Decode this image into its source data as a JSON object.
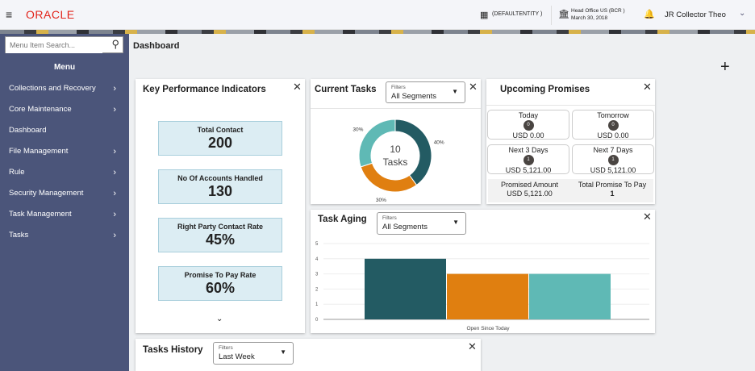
{
  "header": {
    "brand": "ORACLE",
    "entity": "(DEFAULTENTITY )",
    "branch": "Head Office US (BCR )",
    "date": "March 30, 2018",
    "user": "JR Collector Theo"
  },
  "sidebar": {
    "search_placeholder": "Menu Item Search...",
    "menu_title": "Menu",
    "items": [
      {
        "label": "Collections and Recovery",
        "has_children": true
      },
      {
        "label": "Core Maintenance",
        "has_children": true
      },
      {
        "label": "Dashboard",
        "has_children": false
      },
      {
        "label": "File Management",
        "has_children": true
      },
      {
        "label": "Rule",
        "has_children": true
      },
      {
        "label": "Security Management",
        "has_children": true
      },
      {
        "label": "Task Management",
        "has_children": true
      },
      {
        "label": "Tasks",
        "has_children": true
      }
    ]
  },
  "page_title": "Dashboard",
  "kpi": {
    "title": "Key Performance Indicators",
    "items": [
      {
        "label": "Total Contact",
        "value": "200"
      },
      {
        "label": "No Of Accounts Handled",
        "value": "130"
      },
      {
        "label": "Right Party Contact Rate",
        "value": "45%"
      },
      {
        "label": "Promise To Pay Rate",
        "value": "60%"
      }
    ]
  },
  "current_tasks": {
    "title": "Current Tasks",
    "filter_label": "Filters",
    "filter_value": "All Segments",
    "center_count": "10",
    "center_label": "Tasks",
    "slices": [
      {
        "value": 40,
        "label": "40%",
        "color": "#235b63"
      },
      {
        "value": 30,
        "label": "30%",
        "color": "#e07f10"
      },
      {
        "value": 30,
        "label": "30%",
        "color": "#5fb9b5"
      }
    ]
  },
  "upcoming": {
    "title": "Upcoming Promises",
    "boxes": [
      {
        "label": "Today",
        "count": "0",
        "amount": "USD 0.00"
      },
      {
        "label": "Tomorrow",
        "count": "0",
        "amount": "USD 0.00"
      },
      {
        "label": "Next 3 Days",
        "count": "1",
        "amount": "USD 5,121.00"
      },
      {
        "label": "Next 7 Days",
        "count": "1",
        "amount": "USD 5,121.00"
      }
    ],
    "promised_amount_label": "Promised Amount",
    "promised_amount": "USD 5,121.00",
    "total_ptp_label": "Total Promise To Pay",
    "total_ptp": "1"
  },
  "task_aging": {
    "title": "Task Aging",
    "filter_label": "Filters",
    "filter_value": "All Segments"
  },
  "tasks_history": {
    "title": "Tasks History",
    "filter_label": "Filters",
    "filter_value": "Last Week"
  },
  "chart_data": {
    "type": "bar",
    "categories": [
      "Open Since Today"
    ],
    "series": [
      {
        "values": [
          4
        ],
        "color": "#235b63"
      },
      {
        "values": [
          3
        ],
        "color": "#e07f10"
      },
      {
        "values": [
          3
        ],
        "color": "#5fb9b5"
      }
    ],
    "ylim": [
      0,
      5
    ],
    "yticks": [
      "0",
      "1",
      "2",
      "3",
      "4",
      "5"
    ],
    "grid": true
  }
}
